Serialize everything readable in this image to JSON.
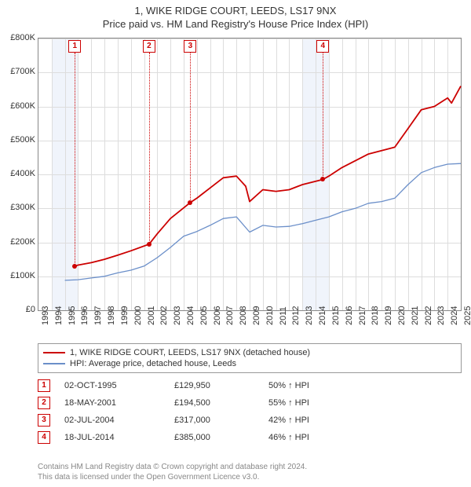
{
  "title_line1": "1, WIKE RIDGE COURT, LEEDS, LS17 9NX",
  "title_line2": "Price paid vs. HM Land Registry's House Price Index (HPI)",
  "chart": {
    "type": "line",
    "background_color": "#ffffff",
    "grid_color": "#dddddd",
    "axis_color": "#888888",
    "shaded_band_color": "#f0f4fb",
    "marker_color": "#cc0000",
    "title_fontsize": 13,
    "tick_fontsize": 11,
    "x_min": 1993,
    "x_max": 2025,
    "xticks": [
      1993,
      1994,
      1995,
      1996,
      1997,
      1998,
      1999,
      2000,
      2001,
      2002,
      2003,
      2004,
      2005,
      2006,
      2007,
      2008,
      2009,
      2010,
      2011,
      2012,
      2013,
      2014,
      2015,
      2016,
      2017,
      2018,
      2019,
      2020,
      2021,
      2022,
      2023,
      2024,
      2025
    ],
    "y_min": 0,
    "y_max": 800000,
    "yticks": [
      0,
      100000,
      200000,
      300000,
      400000,
      500000,
      600000,
      700000,
      800000
    ],
    "ytick_labels": [
      "£0",
      "£100K",
      "£200K",
      "£300K",
      "£400K",
      "£500K",
      "£600K",
      "£700K",
      "£800K"
    ],
    "shaded_bands": [
      [
        1994,
        1996
      ],
      [
        2013,
        2015
      ]
    ],
    "series": [
      {
        "name": "1, WIKE RIDGE COURT, LEEDS, LS17 9NX (detached house)",
        "color": "#cc0000",
        "width": 1.8,
        "data": [
          [
            1995.75,
            129950
          ],
          [
            1996,
            133000
          ],
          [
            1997,
            140000
          ],
          [
            1998,
            150000
          ],
          [
            1999,
            162000
          ],
          [
            2000,
            175000
          ],
          [
            2001.38,
            194500
          ],
          [
            2002,
            225000
          ],
          [
            2003,
            270000
          ],
          [
            2004.5,
            317000
          ],
          [
            2005,
            330000
          ],
          [
            2006,
            360000
          ],
          [
            2007,
            390000
          ],
          [
            2008,
            395000
          ],
          [
            2008.7,
            365000
          ],
          [
            2009,
            320000
          ],
          [
            2010,
            355000
          ],
          [
            2011,
            350000
          ],
          [
            2012,
            355000
          ],
          [
            2013,
            370000
          ],
          [
            2014.55,
            385000
          ],
          [
            2015,
            395000
          ],
          [
            2016,
            420000
          ],
          [
            2017,
            440000
          ],
          [
            2018,
            460000
          ],
          [
            2019,
            470000
          ],
          [
            2020,
            480000
          ],
          [
            2021,
            535000
          ],
          [
            2022,
            590000
          ],
          [
            2023,
            600000
          ],
          [
            2024,
            625000
          ],
          [
            2024.3,
            610000
          ],
          [
            2025,
            660000
          ]
        ]
      },
      {
        "name": "HPI: Average price, detached house, Leeds",
        "color": "#6b8fc9",
        "width": 1.3,
        "data": [
          [
            1995,
            88000
          ],
          [
            1996,
            90000
          ],
          [
            1997,
            95000
          ],
          [
            1998,
            100000
          ],
          [
            1999,
            110000
          ],
          [
            2000,
            118000
          ],
          [
            2001,
            130000
          ],
          [
            2002,
            155000
          ],
          [
            2003,
            185000
          ],
          [
            2004,
            218000
          ],
          [
            2005,
            232000
          ],
          [
            2006,
            250000
          ],
          [
            2007,
            270000
          ],
          [
            2008,
            275000
          ],
          [
            2009,
            230000
          ],
          [
            2010,
            250000
          ],
          [
            2011,
            245000
          ],
          [
            2012,
            247000
          ],
          [
            2013,
            255000
          ],
          [
            2014,
            265000
          ],
          [
            2015,
            275000
          ],
          [
            2016,
            290000
          ],
          [
            2017,
            300000
          ],
          [
            2018,
            315000
          ],
          [
            2019,
            320000
          ],
          [
            2020,
            330000
          ],
          [
            2021,
            370000
          ],
          [
            2022,
            405000
          ],
          [
            2023,
            420000
          ],
          [
            2024,
            430000
          ],
          [
            2025,
            432000
          ]
        ]
      }
    ],
    "markers": [
      {
        "n": "1",
        "year": 1995.75,
        "value": 129950
      },
      {
        "n": "2",
        "year": 2001.38,
        "value": 194500
      },
      {
        "n": "3",
        "year": 2004.5,
        "value": 317000
      },
      {
        "n": "4",
        "year": 2014.55,
        "value": 385000
      }
    ]
  },
  "legend": [
    "1, WIKE RIDGE COURT, LEEDS, LS17 9NX (detached house)",
    "HPI: Average price, detached house, Leeds"
  ],
  "transactions": [
    {
      "n": "1",
      "date": "02-OCT-1995",
      "price": "£129,950",
      "diff": "50% ↑ HPI"
    },
    {
      "n": "2",
      "date": "18-MAY-2001",
      "price": "£194,500",
      "diff": "55% ↑ HPI"
    },
    {
      "n": "3",
      "date": "02-JUL-2004",
      "price": "£317,000",
      "diff": "42% ↑ HPI"
    },
    {
      "n": "4",
      "date": "18-JUL-2014",
      "price": "£385,000",
      "diff": "46% ↑ HPI"
    }
  ],
  "footer_line1": "Contains HM Land Registry data © Crown copyright and database right 2024.",
  "footer_line2": "This data is licensed under the Open Government Licence v3.0."
}
